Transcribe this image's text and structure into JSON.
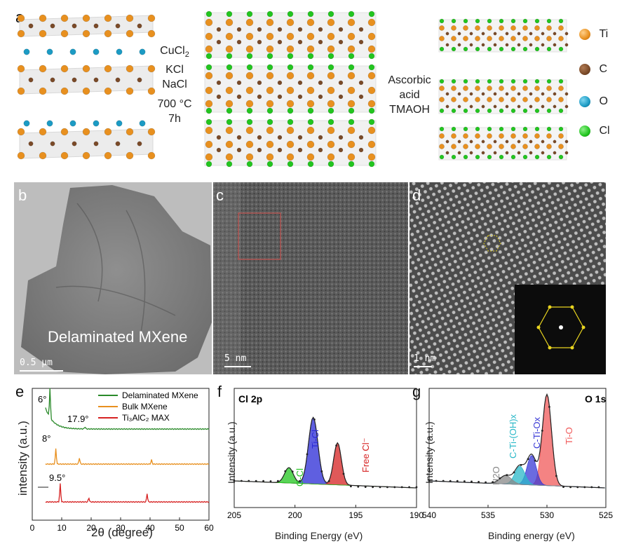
{
  "panel_a": {
    "label": "a",
    "step1": [
      "CuCl2",
      "KCl",
      "NaCl"
    ],
    "step1_cond": [
      "700 °C",
      "7h"
    ],
    "step2": [
      "Ascorbic",
      "acid",
      "TMAOH"
    ],
    "legend": [
      {
        "name": "Ti",
        "color": "#e8901f"
      },
      {
        "name": "C",
        "color": "#7a4a28"
      },
      {
        "name": "O",
        "color": "#1c9bc4"
      },
      {
        "name": "Cl",
        "color": "#22c51f"
      }
    ]
  },
  "panel_b": {
    "label": "b",
    "caption": "Delaminated MXene",
    "scale": "0.5 µm"
  },
  "panel_c": {
    "label": "c",
    "scale": "5 nm"
  },
  "panel_d": {
    "label": "d",
    "scale": "1 nm"
  },
  "chart_data": [
    {
      "panel": "e",
      "type": "line",
      "xlabel": "2θ (degree)",
      "ylabel": "intensity (a.u.)",
      "xlim": [
        0,
        60
      ],
      "xticks": [
        "0",
        "10",
        "20",
        "30",
        "40",
        "50",
        "60"
      ],
      "series": [
        {
          "name": "Delaminated MXene",
          "color": "#2a8a2a",
          "peaks": [
            6,
            17.9
          ]
        },
        {
          "name": "Bulk MXene",
          "color": "#e8901f",
          "peaks": [
            8,
            16,
            40.5
          ]
        },
        {
          "name": "Ti3AlC2 MAX",
          "color": "#d62222",
          "peaks": [
            9.5,
            19.2,
            39
          ]
        }
      ],
      "annotations": [
        "6°",
        "17.9°",
        "8°",
        "9.5°"
      ]
    },
    {
      "panel": "f",
      "type": "area",
      "title": "Cl 2p",
      "xlabel": "Binding Energy (eV)",
      "ylabel": "Intensity (a.u.)",
      "xlim": [
        205,
        190
      ],
      "xticks": [
        "205",
        "200",
        "195",
        "190"
      ],
      "components": [
        {
          "name": "Ti-Cl",
          "color": "#2a2ad6",
          "center": 198.5
        },
        {
          "name": "Free Cl⁻",
          "color": "#d62222",
          "center": 196.5
        },
        {
          "name": "C-Cl",
          "color": "#22c51f",
          "center": 200.5
        }
      ]
    },
    {
      "panel": "g",
      "type": "area",
      "title": "O 1s",
      "xlabel": "Binding energy (eV)",
      "ylabel": "Intensity (a.u.)",
      "xlim": [
        540,
        525
      ],
      "xticks": [
        "540",
        "535",
        "530",
        "525"
      ],
      "components": [
        {
          "name": "Ti-O",
          "color": "#f05a5a",
          "center": 530
        },
        {
          "name": "C-Ti-Ox",
          "color": "#3a3ad6",
          "center": 531.3
        },
        {
          "name": "C-Ti-(OH)x",
          "color": "#2ab8c8",
          "center": 532.3
        },
        {
          "name": "H2O",
          "color": "#888888",
          "center": 533.5
        }
      ]
    }
  ]
}
